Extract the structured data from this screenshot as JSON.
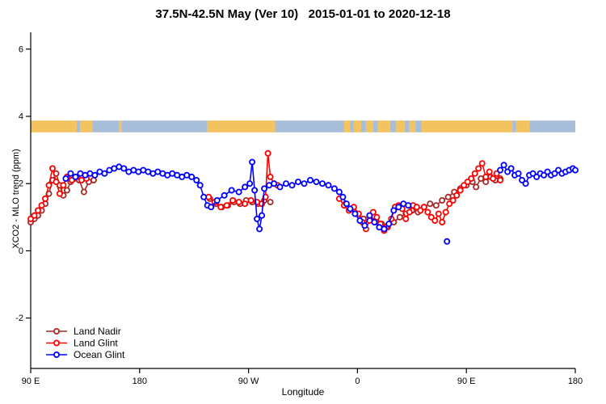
{
  "title": "37.5N-42.5N May (Ver 10)   2015-01-01 to 2020-12-18",
  "axes": {
    "xlabel": "Longitude",
    "ylabel": "XCO2 - MLO trend (ppm)",
    "x_ticks": [
      {
        "value": 90,
        "label": "90 E"
      },
      {
        "value": 180,
        "label": "180"
      },
      {
        "value": 270,
        "label": "90 W"
      },
      {
        "value": 360,
        "label": "0"
      },
      {
        "value": 450,
        "label": "90 E"
      },
      {
        "value": 540,
        "label": "180"
      }
    ],
    "y_ticks": [
      -2,
      0,
      2,
      4,
      6
    ]
  },
  "legend": [
    {
      "label": "Land Nadir",
      "color": "#A52A2A"
    },
    {
      "label": "Land Glint",
      "color": "#FF0000"
    },
    {
      "label": "Ocean Glint",
      "color": "#0000FF"
    }
  ],
  "chart_data": {
    "type": "line",
    "xlim": [
      90,
      540
    ],
    "ylim": [
      -3.5,
      6.5
    ],
    "xlabel": "Longitude",
    "ylabel": "XCO2 - MLO trend (ppm)",
    "title": "37.5N-42.5N May (Ver 10)   2015-01-01 to 2020-12-18",
    "land_ocean_band": {
      "y": 3.7,
      "height": 0.35,
      "colors": {
        "land": "#F2C35E",
        "ocean": "#A8BDD8"
      },
      "segments": [
        {
          "from": 90,
          "to": 128,
          "type": "land"
        },
        {
          "from": 128,
          "to": 131,
          "type": "ocean"
        },
        {
          "from": 131,
          "to": 141,
          "type": "land"
        },
        {
          "from": 141,
          "to": 163,
          "type": "ocean"
        },
        {
          "from": 163,
          "to": 165,
          "type": "land"
        },
        {
          "from": 165,
          "to": 236,
          "type": "ocean"
        },
        {
          "from": 236,
          "to": 292,
          "type": "land"
        },
        {
          "from": 292,
          "to": 349,
          "type": "ocean"
        },
        {
          "from": 349,
          "to": 354,
          "type": "land"
        },
        {
          "from": 354,
          "to": 357,
          "type": "ocean"
        },
        {
          "from": 357,
          "to": 363,
          "type": "land"
        },
        {
          "from": 363,
          "to": 367,
          "type": "ocean"
        },
        {
          "from": 367,
          "to": 373,
          "type": "land"
        },
        {
          "from": 373,
          "to": 377,
          "type": "ocean"
        },
        {
          "from": 377,
          "to": 387,
          "type": "land"
        },
        {
          "from": 387,
          "to": 392,
          "type": "ocean"
        },
        {
          "from": 392,
          "to": 399,
          "type": "land"
        },
        {
          "from": 399,
          "to": 403,
          "type": "ocean"
        },
        {
          "from": 403,
          "to": 408,
          "type": "land"
        },
        {
          "from": 408,
          "to": 413,
          "type": "ocean"
        },
        {
          "from": 413,
          "to": 488,
          "type": "land"
        },
        {
          "from": 488,
          "to": 491,
          "type": "ocean"
        },
        {
          "from": 491,
          "to": 502,
          "type": "land"
        },
        {
          "from": 502,
          "to": 540,
          "type": "ocean"
        }
      ]
    },
    "series": [
      {
        "name": "Land Nadir",
        "id": "land-nadir",
        "color": "#A52A2A",
        "points": [
          [
            90,
            0.85
          ],
          [
            93,
            0.95
          ],
          [
            96,
            1.05
          ],
          [
            99,
            1.2
          ],
          [
            102,
            1.4
          ],
          [
            105,
            1.7
          ],
          [
            108,
            2.1
          ],
          [
            111,
            2.3
          ],
          [
            114,
            1.95
          ],
          [
            117,
            1.65
          ],
          [
            120,
            1.8
          ],
          [
            123,
            2.05
          ],
          [
            126,
            2.15
          ],
          [
            130,
            2.1
          ],
          [
            134,
            1.75
          ],
          [
            138,
            2.05
          ],
          [
            142,
            2.1
          ],
          null,
          [
            238,
            1.55
          ],
          [
            243,
            1.4
          ],
          [
            248,
            1.3
          ],
          [
            253,
            1.35
          ],
          [
            258,
            1.45
          ],
          [
            263,
            1.4
          ],
          [
            268,
            1.5
          ],
          [
            273,
            1.45
          ],
          [
            278,
            1.4
          ],
          [
            283,
            1.5
          ],
          [
            288,
            1.45
          ],
          null,
          [
            350,
            1.4
          ],
          [
            355,
            1.25
          ],
          [
            360,
            1.1
          ],
          [
            365,
            0.95
          ],
          [
            370,
            1.05
          ],
          [
            375,
            0.9
          ],
          [
            380,
            0.8
          ],
          [
            385,
            0.7
          ],
          [
            390,
            0.85
          ],
          [
            395,
            1.0
          ],
          [
            400,
            1.1
          ],
          [
            405,
            1.2
          ],
          [
            410,
            1.15
          ],
          [
            415,
            1.3
          ],
          [
            420,
            1.4
          ],
          [
            425,
            1.35
          ],
          [
            430,
            1.5
          ],
          [
            435,
            1.6
          ],
          [
            440,
            1.75
          ],
          [
            445,
            1.85
          ],
          [
            450,
            1.95
          ],
          [
            455,
            2.05
          ],
          [
            458,
            1.9
          ],
          [
            462,
            2.15
          ],
          [
            466,
            2.05
          ],
          [
            470,
            2.2
          ],
          [
            474,
            2.1
          ],
          [
            478,
            2.15
          ]
        ]
      },
      {
        "name": "Land Glint",
        "id": "land-glint",
        "color": "#FF0000",
        "points": [
          [
            90,
            0.95
          ],
          [
            93,
            1.05
          ],
          [
            96,
            1.2
          ],
          [
            99,
            1.35
          ],
          [
            102,
            1.55
          ],
          [
            105,
            1.95
          ],
          [
            108,
            2.45
          ],
          [
            111,
            2.05
          ],
          [
            114,
            1.7
          ],
          [
            117,
            1.95
          ],
          [
            120,
            2.2
          ],
          [
            124,
            2.1
          ],
          [
            128,
            2.2
          ],
          [
            132,
            2.1
          ],
          [
            136,
            2.15
          ],
          null,
          [
            237,
            1.6
          ],
          [
            242,
            1.45
          ],
          [
            247,
            1.3
          ],
          [
            252,
            1.35
          ],
          [
            257,
            1.5
          ],
          [
            262,
            1.45
          ],
          [
            267,
            1.4
          ],
          [
            272,
            1.5
          ],
          [
            277,
            1.45
          ],
          [
            281,
            1.4
          ],
          [
            284,
            1.6
          ],
          [
            286,
            2.9
          ],
          [
            288,
            2.2
          ],
          [
            291,
            2.0
          ],
          [
            294,
            1.95
          ],
          null,
          [
            345,
            1.55
          ],
          [
            349,
            1.35
          ],
          [
            353,
            1.2
          ],
          [
            357,
            1.3
          ],
          [
            361,
            1.1
          ],
          [
            364,
            0.85
          ],
          [
            367,
            0.65
          ],
          [
            370,
            0.9
          ],
          [
            373,
            1.15
          ],
          [
            376,
            1.0
          ],
          [
            379,
            0.8
          ],
          [
            382,
            0.6
          ],
          [
            385,
            0.75
          ],
          [
            388,
            0.95
          ],
          [
            391,
            1.3
          ],
          [
            394,
            1.35
          ],
          [
            397,
            1.25
          ],
          [
            400,
            0.95
          ],
          [
            403,
            1.15
          ],
          [
            406,
            1.35
          ],
          [
            409,
            1.3
          ],
          [
            412,
            1.2
          ],
          [
            415,
            1.3
          ],
          [
            418,
            1.15
          ],
          [
            421,
            1.0
          ],
          [
            424,
            0.9
          ],
          [
            427,
            1.1
          ],
          [
            430,
            0.85
          ],
          [
            433,
            1.15
          ],
          [
            436,
            1.4
          ],
          [
            439,
            1.5
          ],
          [
            442,
            1.65
          ],
          [
            445,
            1.8
          ],
          [
            448,
            1.95
          ],
          [
            451,
            2.05
          ],
          [
            454,
            2.15
          ],
          [
            457,
            2.3
          ],
          [
            460,
            2.45
          ],
          [
            463,
            2.6
          ],
          [
            466,
            2.2
          ],
          [
            469,
            2.35
          ],
          [
            472,
            2.15
          ],
          [
            475,
            2.3
          ],
          [
            478,
            2.1
          ]
        ]
      },
      {
        "name": "Ocean Glint",
        "id": "ocean-glint",
        "color": "#0000FF",
        "points": [
          [
            119,
            2.15
          ],
          [
            123,
            2.3
          ],
          [
            127,
            2.2
          ],
          [
            131,
            2.3
          ],
          [
            135,
            2.25
          ],
          [
            139,
            2.3
          ],
          [
            143,
            2.25
          ],
          [
            147,
            2.35
          ],
          [
            151,
            2.3
          ],
          [
            155,
            2.4
          ],
          [
            159,
            2.45
          ],
          [
            163,
            2.5
          ],
          [
            167,
            2.45
          ],
          [
            171,
            2.35
          ],
          [
            175,
            2.4
          ],
          [
            179,
            2.35
          ],
          [
            183,
            2.4
          ],
          [
            187,
            2.35
          ],
          [
            191,
            2.3
          ],
          [
            195,
            2.35
          ],
          [
            199,
            2.3
          ],
          [
            203,
            2.25
          ],
          [
            207,
            2.3
          ],
          [
            211,
            2.25
          ],
          [
            215,
            2.2
          ],
          [
            219,
            2.25
          ],
          [
            223,
            2.2
          ],
          [
            227,
            2.1
          ],
          [
            230,
            1.95
          ],
          [
            233,
            1.6
          ],
          [
            236,
            1.35
          ],
          [
            239,
            1.3
          ],
          [
            244,
            1.5
          ],
          [
            250,
            1.65
          ],
          [
            256,
            1.8
          ],
          [
            262,
            1.75
          ],
          [
            267,
            1.9
          ],
          [
            271,
            2.0
          ],
          [
            273,
            2.64
          ],
          [
            275,
            1.8
          ],
          [
            277,
            0.95
          ],
          [
            279,
            0.65
          ],
          [
            281,
            1.05
          ],
          [
            283,
            1.85
          ],
          [
            287,
            1.95
          ],
          [
            291,
            2.0
          ],
          [
            296,
            1.9
          ],
          [
            301,
            2.0
          ],
          [
            306,
            1.95
          ],
          [
            311,
            2.05
          ],
          [
            316,
            2.0
          ],
          [
            321,
            2.1
          ],
          [
            326,
            2.05
          ],
          [
            331,
            2.0
          ],
          [
            336,
            1.95
          ],
          [
            341,
            1.85
          ],
          [
            345,
            1.75
          ],
          [
            348,
            1.6
          ],
          [
            351,
            1.4
          ],
          [
            354,
            1.25
          ],
          [
            358,
            1.1
          ],
          [
            362,
            0.9
          ],
          [
            366,
            0.75
          ],
          [
            370,
            1.05
          ],
          [
            374,
            0.85
          ],
          [
            378,
            0.7
          ],
          [
            382,
            0.65
          ],
          [
            386,
            0.8
          ],
          [
            390,
            1.2
          ],
          [
            394,
            1.3
          ],
          [
            398,
            1.4
          ],
          [
            402,
            1.35
          ],
          null,
          [
            434,
            0.28
          ],
          null,
          [
            478,
            2.4
          ],
          [
            481,
            2.55
          ],
          [
            484,
            2.35
          ],
          [
            487,
            2.45
          ],
          [
            490,
            2.25
          ],
          [
            493,
            2.3
          ],
          [
            496,
            2.1
          ],
          [
            499,
            2.0
          ],
          [
            502,
            2.25
          ],
          [
            505,
            2.3
          ],
          [
            508,
            2.2
          ],
          [
            511,
            2.3
          ],
          [
            514,
            2.25
          ],
          [
            517,
            2.35
          ],
          [
            520,
            2.25
          ],
          [
            523,
            2.3
          ],
          [
            526,
            2.4
          ],
          [
            529,
            2.3
          ],
          [
            532,
            2.35
          ],
          [
            535,
            2.4
          ],
          [
            538,
            2.45
          ],
          [
            540,
            2.4
          ]
        ]
      }
    ]
  }
}
